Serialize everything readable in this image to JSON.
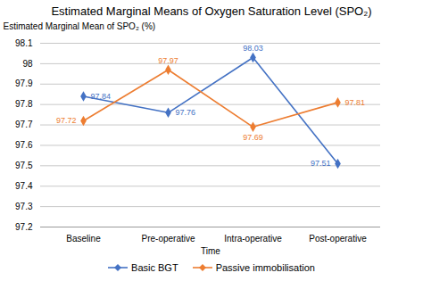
{
  "chart_data": {
    "type": "line",
    "title": "Estimated Marginal Means of Oxygen Saturation Level (SPO₂)",
    "xlabel": "Time",
    "ylabel": "Estimated Marginal Mean of SPO₂ (%)",
    "categories": [
      "Baseline",
      "Pre-operative",
      "Intra-operative",
      "Post-operative"
    ],
    "series": [
      {
        "name": "Basic BGT",
        "color": "#4472c4",
        "marker": "diamond",
        "values": [
          97.84,
          97.76,
          98.03,
          97.51
        ]
      },
      {
        "name": "Passive immobilisation",
        "color": "#ed7d31",
        "marker": "diamond",
        "values": [
          97.72,
          97.97,
          97.69,
          97.81
        ]
      }
    ],
    "ylim": [
      97.2,
      98.1
    ],
    "yticks": [
      97.2,
      97.3,
      97.4,
      97.5,
      97.6,
      97.7,
      97.8,
      97.9,
      98.0,
      98.1
    ],
    "grid": true,
    "legend": "bottom",
    "data_labels": true
  }
}
